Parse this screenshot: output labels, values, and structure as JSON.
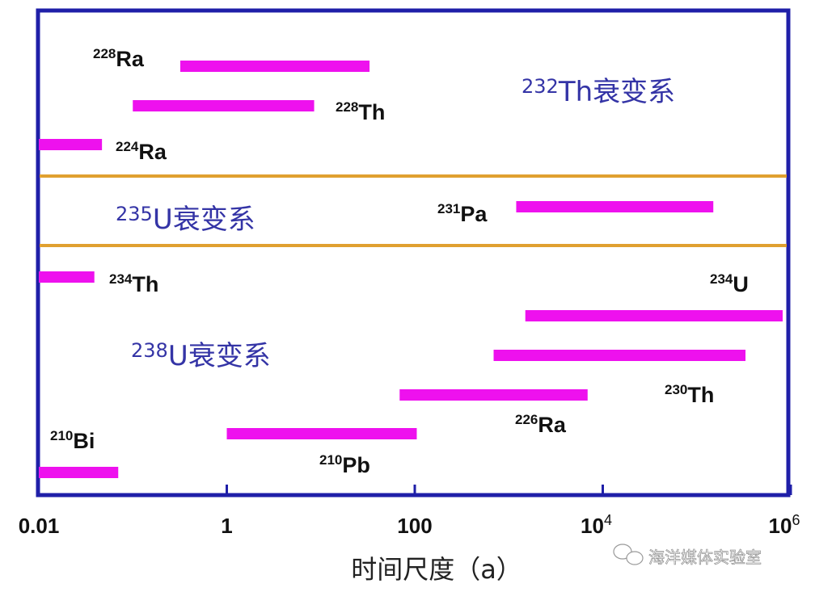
{
  "chart_data": {
    "type": "bar",
    "subtype": "horizontal-range-log",
    "xlabel": "时间尺度（a）",
    "xscale": "log",
    "xlim": [
      0.01,
      1000000
    ],
    "xticks": [
      {
        "value": 0.01,
        "base": "0.01",
        "exp": ""
      },
      {
        "value": 1,
        "base": "1",
        "exp": ""
      },
      {
        "value": 100,
        "base": "100",
        "exp": ""
      },
      {
        "value": 10000,
        "base": "10",
        "exp": "4"
      },
      {
        "value": 1000000,
        "base": "10",
        "exp": "6"
      }
    ],
    "groups": [
      {
        "mass": "232",
        "name": "Th衰变系"
      },
      {
        "mass": "235",
        "name": "U衰变系"
      },
      {
        "mass": "238",
        "name": "U衰变系"
      }
    ],
    "bars": [
      {
        "mass": "228",
        "symbol": "Ra",
        "group": 0,
        "start": 0.32,
        "end": 33
      },
      {
        "mass": "228",
        "symbol": "Th",
        "group": 0,
        "start": 0.1,
        "end": 8.5
      },
      {
        "mass": "224",
        "symbol": "Ra",
        "group": 0,
        "start": 0.01,
        "end": 0.047
      },
      {
        "mass": "231",
        "symbol": "Pa",
        "group": 1,
        "start": 1200,
        "end": 150000
      },
      {
        "mass": "234",
        "symbol": "Th",
        "group": 2,
        "start": 0.01,
        "end": 0.039
      },
      {
        "mass": "234",
        "symbol": "U",
        "group": 2,
        "start": 1500,
        "end": 1000000
      },
      {
        "mass": "230",
        "symbol": "Th",
        "group": 2,
        "start": 690,
        "end": 330000
      },
      {
        "mass": "226",
        "symbol": "Ra",
        "group": 2,
        "start": 69,
        "end": 6900
      },
      {
        "mass": "210",
        "symbol": "Pb",
        "group": 2,
        "start": 1,
        "end": 105
      },
      {
        "mass": "210",
        "symbol": "Bi",
        "group": 2,
        "start": 0.01,
        "end": 0.07
      }
    ],
    "colors": {
      "bar": "#ee11ee",
      "frame": "#1f1fa8",
      "divider": "#e0a030",
      "series_text": "#3434a6"
    }
  },
  "watermark": "海洋媒体实验室"
}
